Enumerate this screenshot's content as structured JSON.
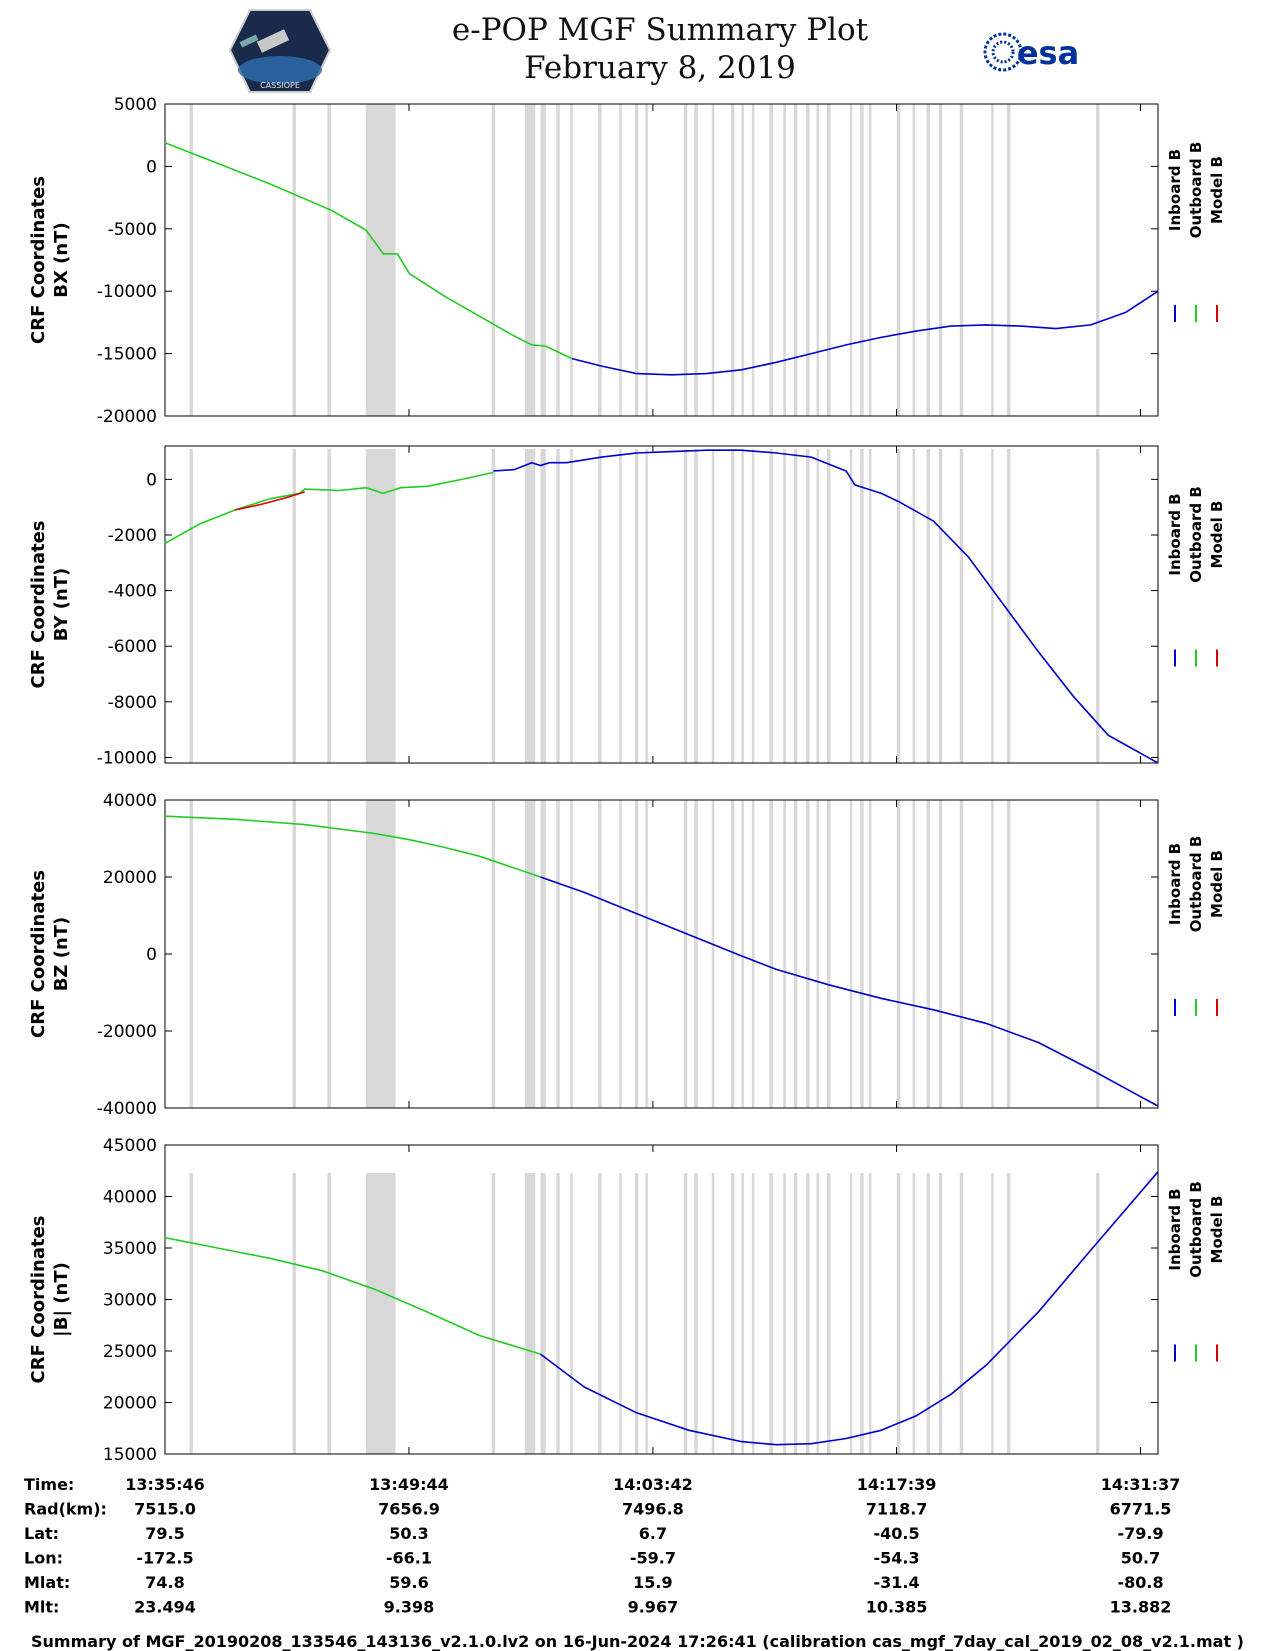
{
  "header": {
    "title_line1": "e-POP MGF Summary Plot",
    "title_line2": "February 8, 2019",
    "left_logo_text": "CASSIOPE",
    "right_logo_text": "esa"
  },
  "colors": {
    "inboard": "#0000cc",
    "outboard": "#22cc22",
    "model": "#dd0000",
    "gap": "#d8d8d8",
    "axis": "#000000"
  },
  "legend": [
    "Inboard B",
    "Outboard B",
    "Model B"
  ],
  "time_axis": {
    "ticks": [
      "13:35:46",
      "13:49:44",
      "14:03:42",
      "14:17:39",
      "14:31:37"
    ],
    "range_minutes": [
      0,
      56.85
    ]
  },
  "gaps_minutes": [
    [
      1.4,
      1.6
    ],
    [
      7.3,
      7.5
    ],
    [
      9.3,
      9.5
    ],
    [
      11.5,
      13.2
    ],
    [
      18.7,
      18.9
    ],
    [
      20.6,
      21.2
    ],
    [
      21.5,
      21.8
    ],
    [
      22.4,
      22.6
    ],
    [
      23.2,
      23.3
    ],
    [
      24.8,
      25.0
    ],
    [
      26.0,
      26.1
    ],
    [
      26.9,
      27.1
    ],
    [
      27.5,
      27.6
    ],
    [
      29.7,
      29.9
    ],
    [
      30.3,
      30.5
    ],
    [
      31.3,
      31.4
    ],
    [
      32.4,
      32.6
    ],
    [
      33.0,
      33.1
    ],
    [
      33.6,
      33.7
    ],
    [
      34.6,
      34.8
    ],
    [
      35.4,
      35.5
    ],
    [
      36.0,
      36.2
    ],
    [
      36.7,
      36.9
    ],
    [
      37.3,
      37.4
    ],
    [
      37.9,
      38.1
    ],
    [
      39.2,
      39.3
    ],
    [
      39.8,
      40.0
    ],
    [
      40.3,
      40.4
    ],
    [
      41.9,
      42.1
    ],
    [
      42.8,
      42.9
    ],
    [
      43.6,
      43.8
    ],
    [
      44.3,
      44.5
    ],
    [
      45.5,
      45.7
    ],
    [
      47.3,
      47.4
    ],
    [
      48.2,
      48.4
    ],
    [
      53.3,
      53.5
    ]
  ],
  "chart_data": [
    {
      "type": "line",
      "ylabel": "CRF Coordinates\nBX (nT)",
      "ylim": [
        -20000,
        5000
      ],
      "yticks": [
        5000,
        0,
        -5000,
        -10000,
        -15000,
        -20000
      ],
      "series": [
        {
          "name": "Outboard B",
          "x": [
            0,
            2,
            4,
            6,
            8,
            9.5,
            11.5,
            12.5,
            13.3,
            14,
            16,
            18,
            20,
            21,
            21.8,
            23.3
          ],
          "y": [
            1900,
            800,
            -300,
            -1400,
            -2600,
            -3500,
            -5100,
            -7000,
            -7000,
            -8600,
            -10400,
            -12000,
            -13600,
            -14300,
            -14400,
            -15400
          ]
        },
        {
          "name": "Inboard B",
          "x": [
            23.3,
            25,
            27,
            29,
            31,
            33,
            35,
            37,
            39,
            41,
            43,
            45,
            47,
            49,
            51,
            53,
            55,
            56.85
          ],
          "y": [
            -15400,
            -16000,
            -16600,
            -16700,
            -16600,
            -16300,
            -15700,
            -15000,
            -14300,
            -13700,
            -13200,
            -12800,
            -12700,
            -12800,
            -13000,
            -12700,
            -11700,
            -10000
          ]
        }
      ]
    },
    {
      "type": "line",
      "ylabel": "CRF Coordinates\nBY (nT)",
      "ylim": [
        -10200,
        1200
      ],
      "yticks": [
        0,
        -2000,
        -4000,
        -6000,
        -8000,
        -10000
      ],
      "series": [
        {
          "name": "Outboard B",
          "x": [
            0,
            2,
            4,
            6,
            7.7,
            8,
            10,
            11.5,
            12.5,
            13.5,
            15,
            17,
            18.8
          ],
          "y": [
            -2300,
            -1600,
            -1100,
            -700,
            -500,
            -350,
            -400,
            -300,
            -500,
            -300,
            -250,
            0,
            250
          ]
        },
        {
          "name": "Model B",
          "x": [
            4,
            5.5,
            7,
            8
          ],
          "y": [
            -1100,
            -900,
            -650,
            -450
          ]
        },
        {
          "name": "Inboard B",
          "x": [
            18.8,
            20,
            21,
            21.5,
            22,
            23,
            25,
            27,
            29,
            31,
            33,
            35,
            37,
            38,
            39,
            39.5,
            40,
            41,
            42,
            44,
            46,
            48,
            50,
            52,
            54,
            56.85
          ],
          "y": [
            300,
            350,
            600,
            500,
            600,
            600,
            800,
            950,
            1000,
            1050,
            1050,
            950,
            800,
            550,
            300,
            -200,
            -300,
            -500,
            -800,
            -1500,
            -2800,
            -4500,
            -6200,
            -7800,
            -9200,
            -10200
          ]
        }
      ]
    },
    {
      "type": "line",
      "ylabel": "CRF Coordinates\nBZ (nT)",
      "ylim": [
        -40000,
        40000
      ],
      "yticks": [
        40000,
        20000,
        0,
        -20000,
        -40000
      ],
      "series": [
        {
          "name": "Outboard B",
          "x": [
            0,
            4,
            8,
            12,
            14,
            16,
            18,
            21.5
          ],
          "y": [
            35800,
            35000,
            33600,
            31300,
            29700,
            27700,
            25400,
            20000
          ]
        },
        {
          "name": "Inboard B",
          "x": [
            21.5,
            24,
            27,
            30,
            33,
            35,
            38,
            41,
            44,
            47,
            50,
            53,
            56.85
          ],
          "y": [
            20000,
            16000,
            10500,
            5000,
            -500,
            -4000,
            -8000,
            -11500,
            -14500,
            -18000,
            -23000,
            -30000,
            -39500
          ]
        }
      ]
    },
    {
      "type": "line",
      "ylabel": "CRF Coordinates\n|B| (nT)",
      "ylim": [
        15000,
        45000
      ],
      "yticks": [
        45000,
        40000,
        35000,
        30000,
        25000,
        20000,
        15000
      ],
      "series": [
        {
          "name": "Outboard B",
          "x": [
            0,
            3,
            6,
            9,
            12,
            15,
            18,
            21.5
          ],
          "y": [
            36000,
            35000,
            34000,
            32800,
            31000,
            28800,
            26500,
            24700
          ]
        },
        {
          "name": "Inboard B",
          "x": [
            21.5,
            24,
            27,
            30,
            33,
            35,
            37,
            39,
            41,
            43,
            45,
            47,
            50,
            53,
            56.85
          ],
          "y": [
            24700,
            21500,
            19000,
            17300,
            16200,
            15900,
            16000,
            16500,
            17300,
            18700,
            20800,
            23600,
            28800,
            34800,
            42400
          ]
        }
      ]
    }
  ],
  "info_table": {
    "rows": [
      {
        "label": "Time:",
        "values": [
          "13:35:46",
          "13:49:44",
          "14:03:42",
          "14:17:39",
          "14:31:37"
        ]
      },
      {
        "label": "Rad(km):",
        "values": [
          "7515.0",
          "7656.9",
          "7496.8",
          "7118.7",
          "6771.5"
        ]
      },
      {
        "label": "Lat:",
        "values": [
          "79.5",
          "50.3",
          "6.7",
          "-40.5",
          "-79.9"
        ]
      },
      {
        "label": "Lon:",
        "values": [
          "-172.5",
          "-66.1",
          "-59.7",
          "-54.3",
          "50.7"
        ]
      },
      {
        "label": "Mlat:",
        "values": [
          "74.8",
          "59.6",
          "15.9",
          "-31.4",
          "-80.8"
        ]
      },
      {
        "label": "Mlt:",
        "values": [
          "23.494",
          "9.398",
          "9.967",
          "10.385",
          "13.882"
        ]
      }
    ]
  },
  "footer": "Summary of MGF_20190208_133546_143136_v2.1.0.lv2 on 16-Jun-2024 17:26:41 (calibration cas_mgf_7day_cal_2019_02_08_v2.1.mat )"
}
